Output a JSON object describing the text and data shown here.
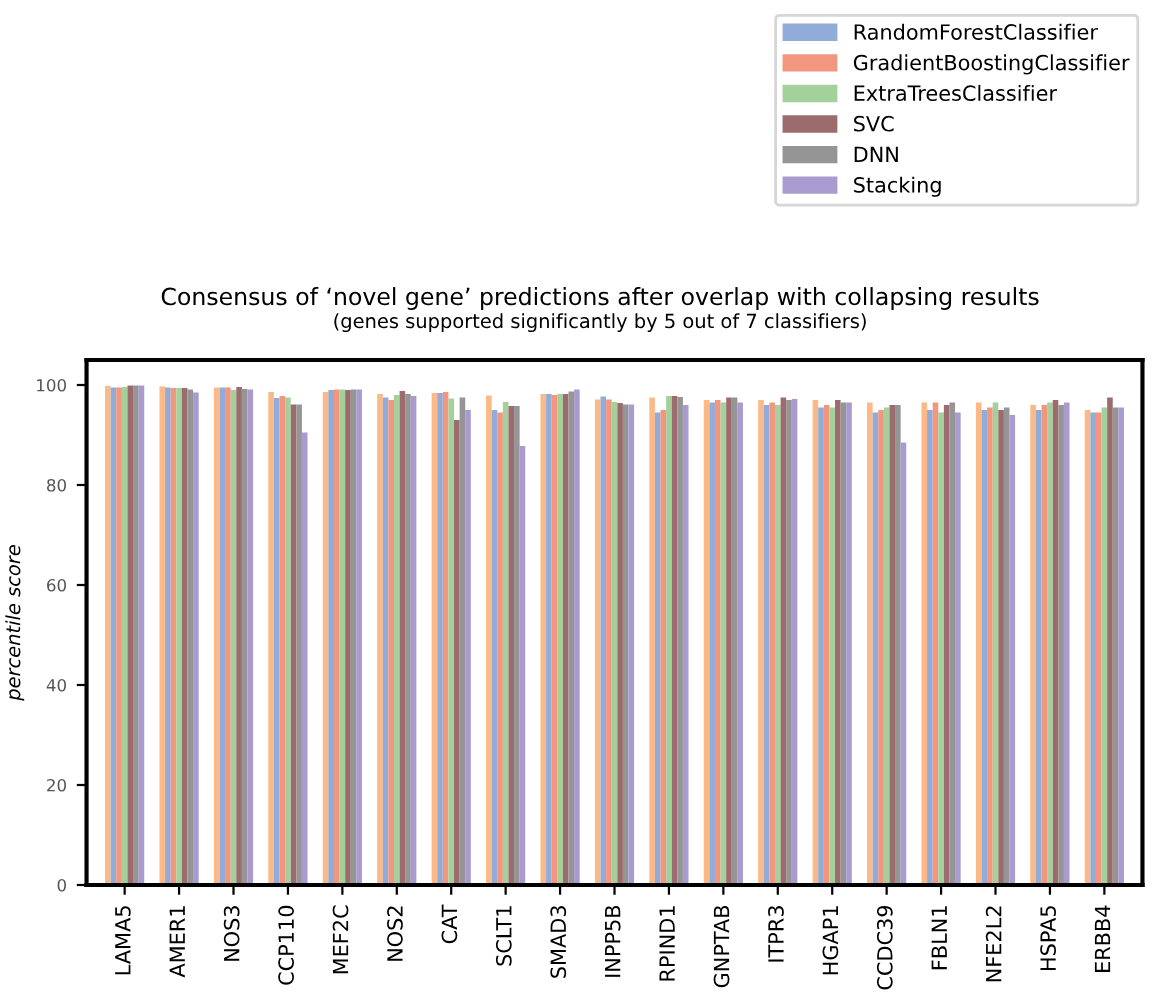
{
  "chart_data": {
    "type": "bar",
    "title": "Consensus of ‘novel gene’ predictions after overlap with collapsing results",
    "subtitle": "(genes supported significantly by 5 out of 7 classifiers)",
    "ylabel": "percentile score",
    "categories": [
      "LAMA5",
      "AMER1",
      "NOS3",
      "CCP110",
      "MEF2C",
      "NOS2",
      "CAT",
      "SCLT1",
      "SMAD3",
      "INPP5B",
      "RPIND1",
      "GNPTAB",
      "ITPR3",
      "HGAP1",
      "CCDC39",
      "FBLN1",
      "NFE2L2",
      "HSPA5",
      "ERBB4"
    ],
    "series": [
      {
        "color": "#fbb987",
        "values": [
          99.8,
          99.7,
          99.5,
          98.6,
          98.6,
          98.2,
          98.4,
          97.9,
          98.2,
          97.1,
          97.5,
          97,
          97,
          97,
          96.5,
          96.5,
          96.5,
          96,
          95
        ]
      },
      {
        "name": "RandomForestClassifier",
        "color": "#91acd8",
        "values": [
          99.5,
          99.5,
          99.5,
          97.4,
          99,
          97.5,
          98.4,
          95,
          98.2,
          97.7,
          94.5,
          96.5,
          96,
          95.5,
          94.5,
          95,
          95,
          95,
          94.5
        ]
      },
      {
        "name": "GradientBoostingClassifier",
        "color": "#f2967f",
        "values": [
          99.5,
          99.4,
          99.5,
          97.8,
          99.1,
          97,
          98.6,
          94.5,
          98,
          97.1,
          95,
          97,
          96.5,
          96,
          95,
          96.5,
          95.5,
          96,
          94.5
        ]
      },
      {
        "name": "ExtraTreesClassifier",
        "color": "#a3d09b",
        "values": [
          99.6,
          99.4,
          99,
          97.5,
          99.1,
          98,
          97.3,
          96.6,
          98.2,
          96.6,
          97.8,
          96.5,
          96,
          95.5,
          95.5,
          94.5,
          96.5,
          96.5,
          95.5
        ]
      },
      {
        "name": "SVC",
        "color": "#9c6b6e",
        "values": [
          99.9,
          99.4,
          99.6,
          96.1,
          99,
          98.8,
          93,
          95.8,
          98.2,
          96.4,
          97.8,
          97.5,
          97.5,
          97,
          96,
          96,
          95,
          97,
          97.5
        ]
      },
      {
        "name": "DNN",
        "color": "#959595",
        "values": [
          99.9,
          99.1,
          99.2,
          96.1,
          99.1,
          98.2,
          97.5,
          95.8,
          98.7,
          96.1,
          97.6,
          97.5,
          97,
          96.5,
          96,
          96.5,
          95.5,
          96,
          95.5
        ]
      },
      {
        "name": "Stacking",
        "color": "#a99bd0",
        "values": [
          99.9,
          98.5,
          99.1,
          90.5,
          99.1,
          97.8,
          95,
          87.8,
          99.1,
          96.1,
          96,
          96.5,
          97.2,
          96.5,
          88.5,
          94.5,
          94,
          96.5,
          95.5
        ]
      }
    ],
    "ylim": [
      0,
      105
    ],
    "yticks": [
      0,
      20,
      40,
      60,
      80,
      100
    ],
    "grid": false,
    "legend": "top right"
  }
}
